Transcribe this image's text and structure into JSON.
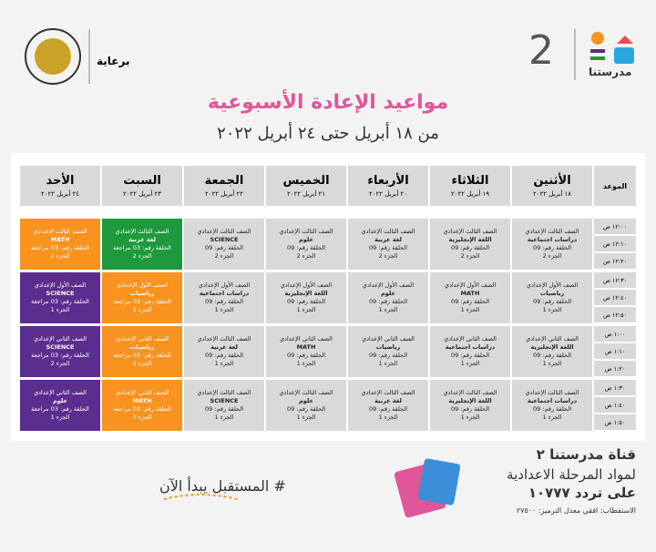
{
  "header": {
    "sponsor": "برعاية",
    "channel_number": "2",
    "channel_name": "مدرستنا",
    "title": "مواعيد الإعادة الأسبوعية",
    "subtitle": "من ١٨ أبريل حتى ٢٤ أبريل ٢٠٢٢"
  },
  "table": {
    "corner": "الموعد",
    "days": [
      {
        "name": "الأثنين",
        "date": "١٨ أبريل ٢٠٢٢"
      },
      {
        "name": "الثلاثاء",
        "date": "١٩ أبريل ٢٠٢٢"
      },
      {
        "name": "الأربعاء",
        "date": "٢٠ أبريل ٢٠٢٢"
      },
      {
        "name": "الخميس",
        "date": "٢١ أبريل ٢٠٢٢"
      },
      {
        "name": "الجمعة",
        "date": "٢٢ أبريل ٢٠٢٢"
      },
      {
        "name": "السبت",
        "date": "٢٣ أبريل ٢٠٢٢"
      },
      {
        "name": "الأحد",
        "date": "٢٤ أبريل ٢٠٢٢"
      }
    ],
    "rows": [
      {
        "times": [
          "١٢:٠٠ ص",
          "١٢:١٠ ص",
          "١٢:٢٠ ص"
        ],
        "cells": [
          {
            "color": "#d9d9d9",
            "lines": [
              "الصف الثالث الإعدادي",
              "دراسات اجتماعية",
              "الحلقة رقم: 09",
              "الجزء 2"
            ]
          },
          {
            "color": "#d9d9d9",
            "lines": [
              "الصف الثالث الإعدادي",
              "اللغة الإنجليزية",
              "الحلقة رقم: 09",
              "الجزء 2"
            ]
          },
          {
            "color": "#d9d9d9",
            "lines": [
              "الصف الثالث الإعدادي",
              "لغة عربية",
              "الحلقة رقم: 09",
              "الجزء 2"
            ]
          },
          {
            "color": "#d9d9d9",
            "lines": [
              "الصف الثالث الإعدادي",
              "علوم",
              "الحلقة رقم: 09",
              "الجزء 2"
            ]
          },
          {
            "color": "#d9d9d9",
            "lines": [
              "الصف الثالث الإعدادي",
              "SCIENCE",
              "الحلقة رقم: 09",
              "الجزء 2"
            ]
          },
          {
            "color": "#1e9a3c",
            "lines": [
              "الصف الثالث الإعدادي",
              "لغة عربية",
              "الحلقة رقم: 03 مراجعة",
              "الجزء 2"
            ]
          },
          {
            "color": "#f7931e",
            "lines": [
              "الصف الثالث الإعدادي",
              "MATH",
              "الحلقة رقم: 03 مراجعة",
              "الجزء 2"
            ]
          }
        ]
      },
      {
        "times": [
          "١٢:٣٠ ص",
          "١٢:٤٠ ص",
          "١٢:٥٠ ص"
        ],
        "cells": [
          {
            "color": "#d9d9d9",
            "lines": [
              "الصف الأول الإعدادي",
              "رياضيات",
              "الحلقة رقم: 09",
              "الجزء 1"
            ]
          },
          {
            "color": "#d9d9d9",
            "lines": [
              "الصف الأول الإعدادي",
              "MATH",
              "الحلقة رقم: 09",
              "الجزء 1"
            ]
          },
          {
            "color": "#d9d9d9",
            "lines": [
              "الصف الأول الإعدادي",
              "علوم",
              "الحلقة رقم: 09",
              "الجزء 1"
            ]
          },
          {
            "color": "#d9d9d9",
            "lines": [
              "الصف الأول الإعدادي",
              "اللغة الإنجليزية",
              "الحلقة رقم: 09",
              "الجزء 1"
            ]
          },
          {
            "color": "#d9d9d9",
            "lines": [
              "الصف الأول الإعدادي",
              "دراسات اجتماعية",
              "الحلقة رقم: 09",
              "الجزء 1"
            ]
          },
          {
            "color": "#f7931e",
            "lines": [
              "الصف الأول الإعدادي",
              "رياضيات",
              "الحلقة رقم: 03 مراجعة",
              "الجزء 1"
            ]
          },
          {
            "color": "#5b2d8e",
            "lines": [
              "الصف الأول الإعدادي",
              "SCIENCE",
              "الحلقة رقم: 03 مراجعة",
              "الجزء 1"
            ]
          }
        ]
      },
      {
        "times": [
          "١:٠٠ ص",
          "١:١٠ ص",
          "١:٢٠ ص"
        ],
        "cells": [
          {
            "color": "#d9d9d9",
            "lines": [
              "الصف الثاني الإعدادي",
              "اللغة الإنجليزية",
              "الحلقة رقم: 09",
              "الجزء 1"
            ]
          },
          {
            "color": "#d9d9d9",
            "lines": [
              "الصف الثاني الإعدادي",
              "دراسات اجتماعية",
              "الحلقة رقم: 09",
              "الجزء 1"
            ]
          },
          {
            "color": "#d9d9d9",
            "lines": [
              "الصف الثاني الإعدادي",
              "رياضيات",
              "الحلقة رقم: 09",
              "الجزء 1"
            ]
          },
          {
            "color": "#d9d9d9",
            "lines": [
              "الصف الثاني الإعدادي",
              "MATH",
              "الحلقة رقم: 09",
              "الجزء 1"
            ]
          },
          {
            "color": "#d9d9d9",
            "lines": [
              "الصف الثالث الإعدادي",
              "لغة عربية",
              "الحلقة رقم: 09",
              "الجزء 1"
            ]
          },
          {
            "color": "#f7931e",
            "lines": [
              "الصف الثاني الإعدادي",
              "رياضيات",
              "الحلقة رقم: 03 مراجعة",
              "الجزء 2"
            ]
          },
          {
            "color": "#5b2d8e",
            "lines": [
              "الصف الثاني الإعدادي",
              "SCIENCE",
              "الحلقة رقم: 03 مراجعة",
              "الجزء 2"
            ]
          }
        ]
      },
      {
        "times": [
          "١:٣٠ ص",
          "١:٤٠ ص",
          "١:٥٠ ص"
        ],
        "cells": [
          {
            "color": "#d9d9d9",
            "lines": [
              "الصف الثالث الإعدادي",
              "دراسات اجتماعية",
              "الحلقة رقم: 09",
              "الجزء 1"
            ]
          },
          {
            "color": "#d9d9d9",
            "lines": [
              "الصف الثالث الإعدادي",
              "اللغة الإنجليزية",
              "الحلقة رقم: 09",
              "الجزء 1"
            ]
          },
          {
            "color": "#d9d9d9",
            "lines": [
              "الصف الثالث الإعدادي",
              "لغة عربية",
              "الحلقة رقم: 09",
              "الجزء 1"
            ]
          },
          {
            "color": "#d9d9d9",
            "lines": [
              "الصف الثالث الإعدادي",
              "علوم",
              "الحلقة رقم: 09",
              "الجزء 1"
            ]
          },
          {
            "color": "#d9d9d9",
            "lines": [
              "الصف الثالث الإعدادي",
              "SCIENCE",
              "الحلقة رقم: 09",
              "الجزء 1"
            ]
          },
          {
            "color": "#f7931e",
            "lines": [
              "الصف الثاني الإعدادي",
              "MATH",
              "الحلقة رقم: 03 مراجعة",
              "الجزء 1"
            ]
          },
          {
            "color": "#5b2d8e",
            "lines": [
              "الصف الثاني الإعدادي",
              "علوم",
              "الحلقة رقم: 03 مراجعة",
              "الجزء 1"
            ]
          }
        ]
      }
    ]
  },
  "footer": {
    "hashtag": "# المستقبل يبدأ الآن",
    "channel": "قناة مدرستنا ٢",
    "subjects": "لمواد المرحلة الاعدادية",
    "frequency": "على تردد ١٠٧٧٧",
    "polarization": "الاستقطاب: افقي معدل الترميز: ٢٧٥٠٠"
  }
}
